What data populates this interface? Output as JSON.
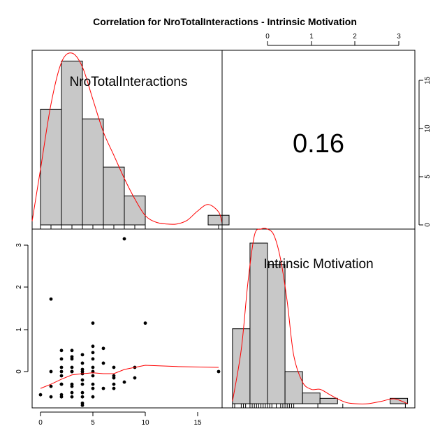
{
  "chart_data": {
    "type": "scatter-matrix",
    "title": "Correlation  for NroTotalInteractions - Intrinsic Motivation",
    "variables": [
      "NroTotalInteractions",
      "Intrinsic Motivation"
    ],
    "correlation": "0.16",
    "x_var1_ticks": [
      "0",
      "5",
      "10",
      "15"
    ],
    "x_var2_ticks": [
      "0",
      "1",
      "2",
      "3"
    ],
    "y_var2_ticks": [
      "0",
      "1",
      "2",
      "3"
    ],
    "y_count_ticks": [
      "0",
      "5",
      "10",
      "15"
    ],
    "hist_var1": {
      "bins": [
        [
          0,
          2,
          12
        ],
        [
          2,
          4,
          17
        ],
        [
          4,
          6,
          11
        ],
        [
          6,
          8,
          6
        ],
        [
          8,
          10,
          3
        ],
        [
          10,
          12,
          0
        ],
        [
          12,
          14,
          0
        ],
        [
          14,
          16,
          0
        ],
        [
          16,
          18,
          1
        ]
      ]
    },
    "hist_var2": {
      "bins": [
        [
          -0.8,
          -0.4,
          7
        ],
        [
          -0.4,
          0.0,
          15
        ],
        [
          0.0,
          0.4,
          13
        ],
        [
          0.4,
          0.8,
          3
        ],
        [
          0.8,
          1.2,
          1
        ],
        [
          1.2,
          1.6,
          0.5
        ],
        [
          1.6,
          2.0,
          0
        ],
        [
          2.0,
          2.4,
          0
        ],
        [
          2.4,
          2.8,
          0
        ],
        [
          2.8,
          3.2,
          0.5
        ]
      ]
    },
    "scatter": {
      "x": [
        0,
        1,
        1,
        1,
        1,
        2,
        2,
        2,
        2,
        2,
        2,
        2,
        2,
        2,
        3,
        3,
        3,
        3,
        3,
        3,
        3,
        3,
        3,
        3,
        4,
        4,
        4,
        4,
        4,
        4,
        4,
        4,
        4,
        4,
        4,
        5,
        5,
        5,
        5,
        5,
        5,
        5,
        5,
        5,
        5,
        6,
        6,
        6,
        7,
        7,
        7,
        7,
        7,
        8,
        8,
        9,
        9,
        10,
        17
      ],
      "y": [
        -0.55,
        1.72,
        0.0,
        -0.35,
        -0.6,
        0.5,
        0.3,
        0.1,
        -0.1,
        -0.3,
        -0.55,
        -0.6,
        0.0,
        -0.3,
        0.5,
        0.35,
        0.3,
        0.1,
        0.0,
        -0.3,
        -0.35,
        -0.5,
        0.0,
        -0.6,
        0.4,
        0.2,
        0.05,
        0.0,
        -0.05,
        -0.2,
        -0.3,
        -0.5,
        -0.6,
        -0.75,
        -0.8,
        1.15,
        0.6,
        0.45,
        0.3,
        0.1,
        0.0,
        -0.1,
        -0.3,
        -0.4,
        -0.6,
        0.55,
        0.2,
        -0.4,
        0.1,
        -0.1,
        -0.15,
        -0.3,
        -0.4,
        3.15,
        -0.25,
        0.1,
        -0.15,
        1.15,
        0.0
      ]
    },
    "lowess": {
      "x": [
        0,
        1,
        2,
        3,
        4,
        5,
        6,
        7,
        8,
        9,
        10,
        13,
        17
      ],
      "y": [
        -0.4,
        -0.3,
        -0.18,
        -0.08,
        -0.05,
        -0.03,
        -0.05,
        -0.05,
        0.05,
        0.1,
        0.15,
        0.12,
        0.1
      ]
    },
    "density_var1": {
      "x": [
        -1.0,
        0.0,
        1.0,
        2.0,
        3.0,
        4.0,
        5.0,
        6.0,
        7.0,
        8.0,
        9.0,
        10.0,
        11.0,
        12.0,
        13.0,
        14.0,
        15.0,
        16.0,
        17.0,
        18.0
      ],
      "y": [
        0.004,
        0.06,
        0.13,
        0.175,
        0.185,
        0.17,
        0.135,
        0.1,
        0.075,
        0.05,
        0.028,
        0.01,
        0.003,
        0.001,
        0.001,
        0.005,
        0.015,
        0.022,
        0.014,
        0.002
      ]
    },
    "density_var2": {
      "x": [
        -0.8,
        -0.6,
        -0.45,
        -0.3,
        -0.15,
        0.0,
        0.15,
        0.3,
        0.45,
        0.6,
        0.8,
        1.0,
        1.2,
        1.4,
        1.6,
        1.8,
        2.0,
        2.3,
        2.6,
        2.9,
        3.2
      ],
      "y": [
        0.02,
        0.45,
        1.0,
        1.4,
        1.5,
        1.48,
        1.4,
        1.2,
        0.85,
        0.4,
        0.18,
        0.12,
        0.12,
        0.08,
        0.04,
        0.01,
        0.0,
        0.0,
        0.02,
        0.04,
        0.0
      ]
    },
    "rug_var1": [
      0,
      1,
      2,
      3,
      4,
      5,
      6,
      7,
      8,
      9,
      10,
      17
    ],
    "rug_var2": [
      -0.8,
      -0.75,
      -0.6,
      -0.55,
      -0.5,
      -0.4,
      -0.35,
      -0.3,
      -0.25,
      -0.2,
      -0.15,
      -0.1,
      -0.05,
      0.0,
      0.05,
      0.1,
      0.2,
      0.3,
      0.35,
      0.4,
      0.45,
      0.5,
      0.55,
      0.6,
      1.15,
      1.72,
      3.15
    ]
  }
}
